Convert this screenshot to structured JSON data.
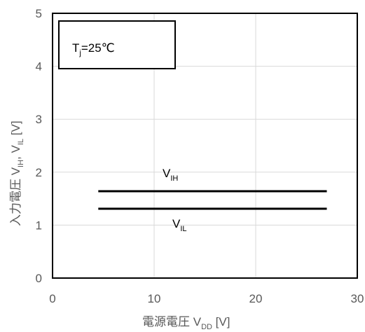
{
  "chart_data": {
    "type": "line",
    "xlim": [
      0,
      30
    ],
    "ylim": [
      0,
      5
    ],
    "x_ticks": [
      "0",
      "10",
      "20",
      "30"
    ],
    "y_ticks": [
      "0",
      "1",
      "2",
      "3",
      "4",
      "5"
    ],
    "grid": true,
    "xlabel": {
      "main": "電源電圧 V",
      "sub": "DD",
      "unit": " [V]"
    },
    "ylabel": {
      "p1": "入力電圧 V",
      "s1": "IH",
      "p2": ", V",
      "s2": "IL",
      "p3": " [V]"
    },
    "condition_box": {
      "main": "T",
      "sub": "j",
      "rest": "=25℃"
    },
    "series": [
      {
        "label_main": "V",
        "label_sub": "IH",
        "x": [
          4.5,
          27
        ],
        "y": [
          1.64,
          1.64
        ],
        "color": "#000000"
      },
      {
        "label_main": "V",
        "label_sub": "IL",
        "x": [
          4.5,
          27
        ],
        "y": [
          1.31,
          1.31
        ],
        "color": "#000000"
      }
    ]
  }
}
